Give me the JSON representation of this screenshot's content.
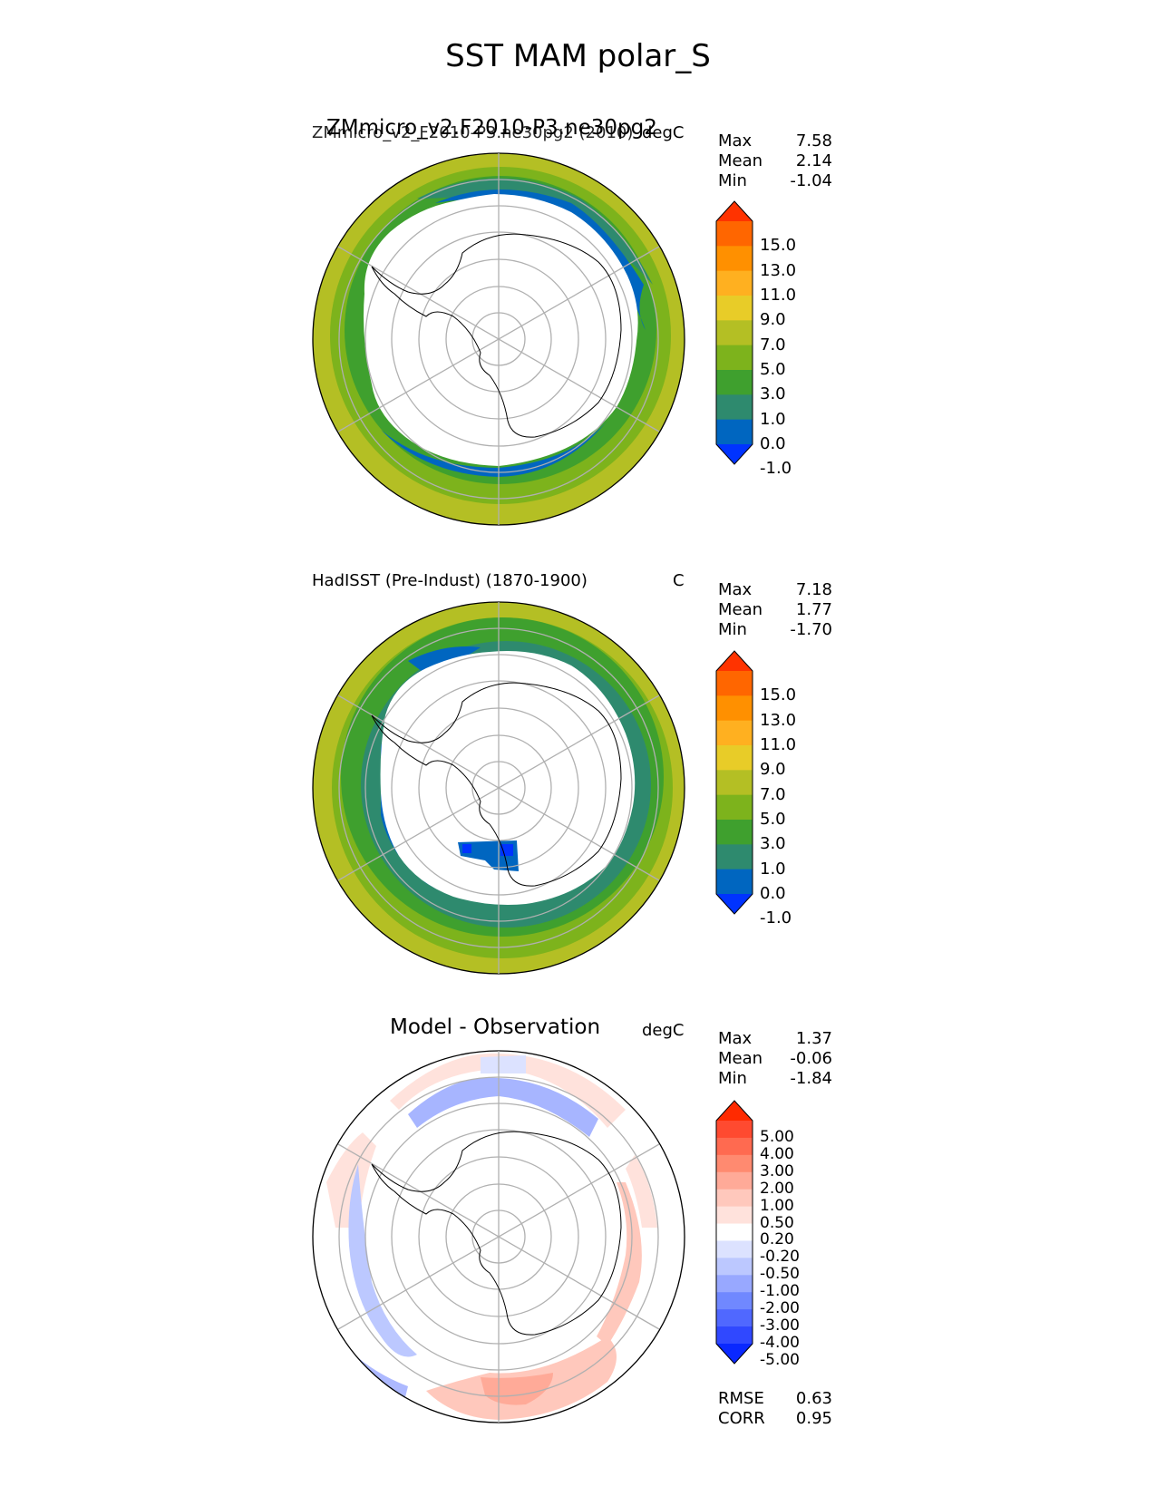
{
  "title": "SST MAM polar_S",
  "panels": [
    {
      "id": "test",
      "title_big": "ZMmicro_v2.F2010-P3.ne30pg2",
      "title_small": "ZMmicro_v2_F2010-P3.ne30pg2 (2010)",
      "units": "degC",
      "stats": [
        {
          "label": "Max",
          "value": "7.58"
        },
        {
          "label": "Mean",
          "value": "2.14"
        },
        {
          "label": "Min",
          "value": "-1.04"
        }
      ],
      "colorbar": {
        "levels": [
          "15.0",
          "13.0",
          "11.0",
          "9.0",
          "7.0",
          "5.0",
          "3.0",
          "1.0",
          "0.0",
          "-1.0"
        ],
        "colors": [
          "#ff3300",
          "#ff6600",
          "#ff9000",
          "#ffb020",
          "#e8cc28",
          "#b4bf24",
          "#7db31c",
          "#3fa02e",
          "#2e8a6e",
          "#0066c0",
          "#0033ff"
        ]
      }
    },
    {
      "id": "reference",
      "title_small": "HadISST (Pre-Indust) (1870-1900)",
      "units": "C",
      "stats": [
        {
          "label": "Max",
          "value": "7.18"
        },
        {
          "label": "Mean",
          "value": "1.77"
        },
        {
          "label": "Min",
          "value": "-1.70"
        }
      ],
      "colorbar": {
        "levels": [
          "15.0",
          "13.0",
          "11.0",
          "9.0",
          "7.0",
          "5.0",
          "3.0",
          "1.0",
          "0.0",
          "-1.0"
        ],
        "colors": [
          "#ff3300",
          "#ff6600",
          "#ff9000",
          "#ffb020",
          "#e8cc28",
          "#b4bf24",
          "#7db31c",
          "#3fa02e",
          "#2e8a6e",
          "#0066c0",
          "#0033ff"
        ]
      }
    },
    {
      "id": "diff",
      "title_big": "Model - Observation",
      "units": "degC",
      "stats": [
        {
          "label": "Max",
          "value": "1.37"
        },
        {
          "label": "Mean",
          "value": "-0.06"
        },
        {
          "label": "Min",
          "value": "-1.84"
        }
      ],
      "colorbar": {
        "levels": [
          "5.00",
          "4.00",
          "3.00",
          "2.00",
          "1.00",
          "0.50",
          "0.20",
          "-0.20",
          "-0.50",
          "-1.00",
          "-2.00",
          "-3.00",
          "-4.00",
          "-5.00"
        ],
        "colors": [
          "#ff2a00",
          "#ff4a30",
          "#ff6a50",
          "#ff8a70",
          "#ffaa98",
          "#ffc8bc",
          "#ffe2dc",
          "#ffffff",
          "#dce2ff",
          "#bcc8ff",
          "#98a8ff",
          "#7088ff",
          "#5068ff",
          "#3048ff",
          "#0a28ff"
        ]
      },
      "metrics": [
        {
          "label": "RMSE",
          "value": "0.63"
        },
        {
          "label": "CORR",
          "value": "0.95"
        }
      ]
    }
  ]
}
